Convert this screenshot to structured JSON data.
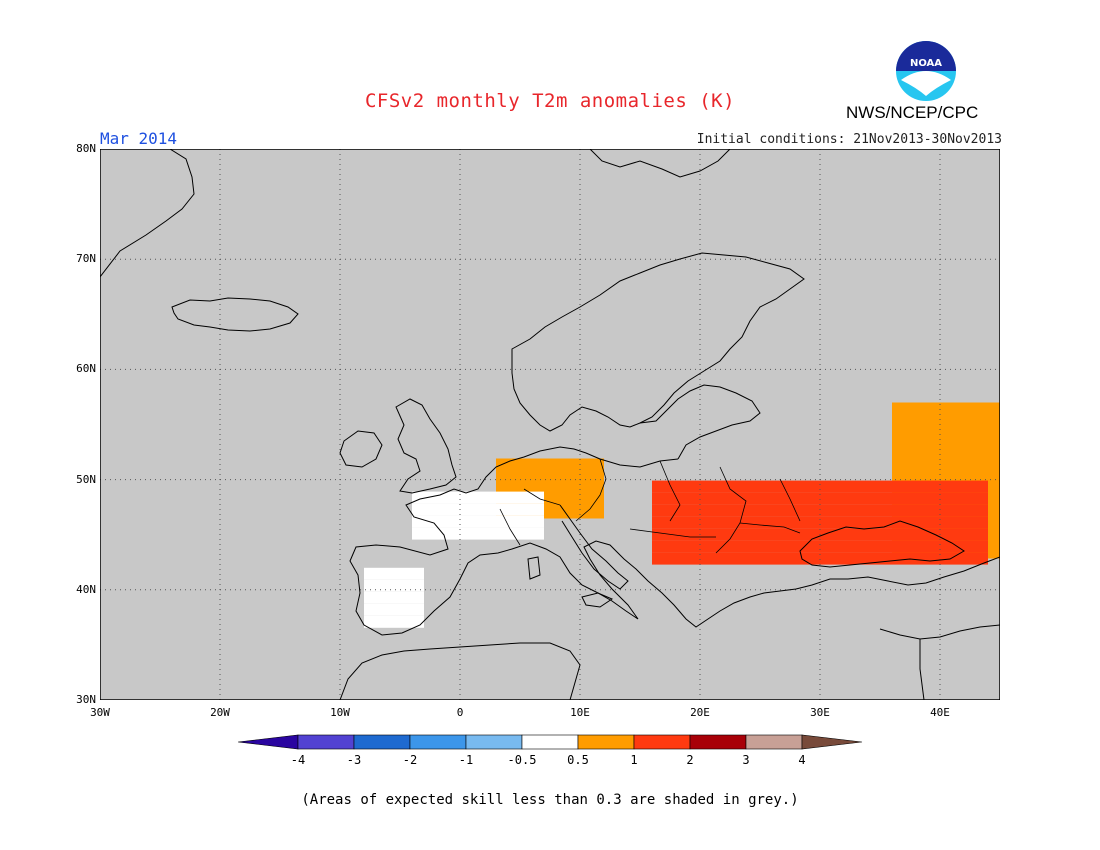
{
  "header": {
    "title": "CFSv2 monthly T2m anomalies (K)",
    "valid_month": "Mar 2014",
    "initial_conditions": "Initial conditions: 21Nov2013-30Nov2013",
    "agency": "NWS/NCEP/CPC",
    "logo_text": "NOAA"
  },
  "colors": {
    "title": "#e8262b",
    "valid_month": "#1e50e0",
    "map_bg": "#c8c8c8",
    "coast": "#000000"
  },
  "map": {
    "lon_ticks": [
      "30W",
      "20W",
      "10W",
      "0",
      "10E",
      "20E",
      "30E",
      "40E"
    ],
    "lat_ticks": [
      "80N",
      "70N",
      "60N",
      "50N",
      "40N",
      "30N"
    ],
    "lon_range": [
      -30,
      45
    ],
    "lat_range": [
      30,
      80
    ],
    "anomaly_regions": [
      {
        "category": "0.5 to 1",
        "color": "#ff9c00",
        "lon": [
          2,
          13
        ],
        "lat": [
          45,
          53
        ]
      },
      {
        "category": "0.5 to 1",
        "color": "#ff9c00",
        "lon": [
          36,
          45
        ],
        "lat": [
          43,
          57
        ]
      },
      {
        "category": "1 to 2",
        "color": "#ff3a10",
        "lon": [
          15,
          45
        ],
        "lat": [
          41,
          51
        ]
      },
      {
        "category": "-0.5 to 0.5",
        "color": "#ffffff",
        "lon": [
          -5,
          8
        ],
        "lat": [
          43,
          50
        ]
      },
      {
        "category": "-0.5 to 0.5",
        "color": "#ffffff",
        "lon": [
          -8,
          -3
        ],
        "lat": [
          37,
          42
        ]
      }
    ]
  },
  "colorbar": {
    "colors": [
      "#2a05a0",
      "#5242d2",
      "#1e6ad0",
      "#3c96ea",
      "#78baf0",
      "#ffffff",
      "#ff9c00",
      "#ff3a10",
      "#a80008",
      "#c8a096",
      "#784a3a"
    ],
    "labels": [
      "-4",
      "-3",
      "-2",
      "-1",
      "-0.5",
      "0.5",
      "1",
      "2",
      "3",
      "4"
    ]
  },
  "footnote": "(Areas of expected skill less than 0.3 are shaded in grey.)"
}
